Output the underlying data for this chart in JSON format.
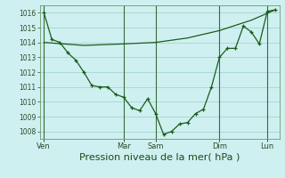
{
  "background_color": "#cff0f0",
  "grid_color": "#aad8d8",
  "line_color": "#1a5c1a",
  "marker_color": "#1a5c1a",
  "xlabel": "Pression niveau de la mer( hPa )",
  "xlabel_fontsize": 8,
  "ylim": [
    1007.5,
    1016.5
  ],
  "yticks": [
    1008,
    1009,
    1010,
    1011,
    1012,
    1013,
    1014,
    1015,
    1016
  ],
  "day_labels": [
    "Ven",
    "Mar",
    "Sam",
    "Dim",
    "Lun"
  ],
  "day_positions": [
    0,
    10,
    14,
    22,
    28
  ],
  "xlim": [
    -0.5,
    29.5
  ],
  "series1_x": [
    0,
    1,
    2,
    3,
    4,
    5,
    6,
    7,
    8,
    9,
    10,
    11,
    12,
    13,
    14,
    15,
    16,
    17,
    18,
    19,
    20,
    21,
    22,
    23,
    24,
    25,
    26,
    27,
    28,
    29
  ],
  "series1_y": [
    1016.0,
    1014.2,
    1014.0,
    1013.3,
    1012.8,
    1012.0,
    1011.1,
    1011.0,
    1011.0,
    1010.5,
    1010.3,
    1009.6,
    1009.4,
    1010.2,
    1009.2,
    1007.8,
    1008.0,
    1008.5,
    1008.6,
    1009.2,
    1009.5,
    1011.0,
    1013.0,
    1013.6,
    1013.6,
    1015.1,
    1014.7,
    1013.9,
    1016.1,
    1016.2
  ],
  "series2_x": [
    0,
    5,
    10,
    14,
    18,
    22,
    26,
    29
  ],
  "series2_y": [
    1014.0,
    1013.8,
    1013.9,
    1014.0,
    1014.3,
    1014.8,
    1015.5,
    1016.2
  ],
  "figsize": [
    3.2,
    2.0
  ],
  "dpi": 100
}
